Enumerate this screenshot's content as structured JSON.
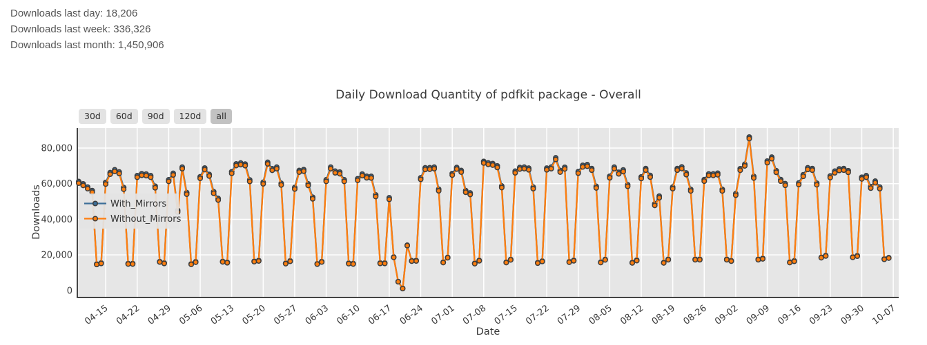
{
  "stats": {
    "lines": [
      "Downloads last day: 18,206",
      "Downloads last week: 336,326",
      "Downloads last month: 1,450,906"
    ]
  },
  "controls": {
    "buttons": [
      "30d",
      "60d",
      "90d",
      "120d",
      "all"
    ],
    "active": "all"
  },
  "chart_data": {
    "type": "line",
    "title": "Daily Download Quantity of pdfkit package - Overall",
    "xlabel": "Date",
    "ylabel": "Downloads",
    "grid": true,
    "legend_position": "inside-top-left",
    "start_date": "04-09",
    "x_tick_labels": [
      "04-15",
      "04-22",
      "04-29",
      "05-06",
      "05-13",
      "05-20",
      "05-27",
      "06-03",
      "06-10",
      "06-17",
      "06-24",
      "07-01",
      "07-08",
      "07-15",
      "07-22",
      "07-29",
      "08-05",
      "08-12",
      "08-19",
      "08-26",
      "09-02",
      "09-09",
      "09-16",
      "09-23",
      "09-30",
      "10-07"
    ],
    "first_tick_day_index": 6,
    "days_per_tick": 7,
    "y_tick_values": [
      0,
      20000,
      40000,
      60000,
      80000
    ],
    "y_tick_labels": [
      "0",
      "20,000",
      "40,000",
      "60,000",
      "80,000"
    ],
    "ylim": [
      0,
      91000
    ],
    "series": [
      {
        "name": "With_Mirrors",
        "color": "#3C6E98",
        "values": [
          61200,
          59900,
          58100,
          56100,
          14850,
          15450,
          60700,
          66200,
          67800,
          66600,
          57800,
          15150,
          15150,
          64500,
          65600,
          65400,
          64500,
          58600,
          16250,
          15450,
          62200,
          65800,
          45000,
          69300,
          55000,
          14950,
          16150,
          63900,
          68800,
          65200,
          55500,
          51700,
          16350,
          15850,
          66700,
          71100,
          71600,
          71000,
          62100,
          16450,
          16850,
          60800,
          72000,
          68400,
          69300,
          60200,
          15350,
          16650,
          57900,
          67400,
          67900,
          59900,
          52400,
          15050,
          16250,
          62200,
          69300,
          67000,
          66500,
          62200,
          15350,
          15150,
          62800,
          65400,
          64200,
          64100,
          53700,
          15450,
          15450,
          52100,
          18850,
          5020,
          1220,
          25450,
          16750,
          16850,
          63300,
          68900,
          69000,
          69300,
          56900,
          15950,
          18650,
          65700,
          69100,
          67400,
          56100,
          54800,
          15350,
          16950,
          72500,
          71700,
          71300,
          70000,
          58700,
          15950,
          17450,
          67000,
          69100,
          69300,
          68700,
          58100,
          15650,
          16550,
          68700,
          69300,
          74500,
          67400,
          69200,
          16150,
          16950,
          66800,
          70300,
          70700,
          68500,
          58500,
          15950,
          17450,
          64200,
          69300,
          66400,
          67700,
          59400,
          15750,
          17050,
          63800,
          68500,
          64600,
          48700,
          53000,
          15750,
          17550,
          58100,
          68500,
          69400,
          66000,
          56800,
          17550,
          17550,
          62300,
          65500,
          65500,
          65900,
          56800,
          17550,
          16750,
          54400,
          68400,
          70900,
          86200,
          64100,
          17550,
          18050,
          72700,
          74900,
          67300,
          62300,
          60000,
          15950,
          16650,
          60400,
          65000,
          68900,
          68500,
          60300,
          18650,
          19650,
          64300,
          67000,
          68300,
          68500,
          67300,
          18850,
          19550,
          63600,
          64500,
          58400,
          61400,
          58100,
          17750,
          18456
        ]
      },
      {
        "name": "Without_Mirrors",
        "color": "#FF7E0E",
        "values": [
          60300,
          59000,
          57200,
          55200,
          14600,
          15200,
          59800,
          65300,
          66900,
          65700,
          56900,
          14900,
          14900,
          63600,
          64700,
          64500,
          63600,
          57700,
          16000,
          15200,
          61300,
          64900,
          44100,
          68400,
          54100,
          14700,
          15900,
          63000,
          67900,
          64300,
          54600,
          50800,
          16100,
          15600,
          65800,
          70200,
          70700,
          70100,
          61200,
          16200,
          16600,
          59900,
          71100,
          67500,
          68400,
          59300,
          15100,
          16400,
          57000,
          66500,
          67000,
          59000,
          51500,
          14800,
          16000,
          61300,
          68400,
          66100,
          65600,
          61300,
          15100,
          14900,
          61900,
          64500,
          63300,
          63200,
          52800,
          15200,
          15200,
          51200,
          18600,
          4900,
          1100,
          25200,
          16500,
          16600,
          62400,
          68000,
          68100,
          68400,
          56000,
          15700,
          18400,
          64800,
          68200,
          66500,
          55200,
          53900,
          15100,
          16700,
          71600,
          70800,
          70400,
          69100,
          57800,
          15700,
          17200,
          66100,
          68200,
          68400,
          67800,
          57200,
          15400,
          16300,
          67800,
          68400,
          73600,
          66500,
          68300,
          15900,
          16700,
          65900,
          69400,
          69800,
          67600,
          57600,
          15700,
          17200,
          63300,
          68400,
          65500,
          66800,
          58500,
          15500,
          16800,
          62900,
          67600,
          63700,
          47800,
          52100,
          15500,
          17300,
          57200,
          67600,
          68500,
          65100,
          55900,
          17300,
          17300,
          61400,
          64600,
          64600,
          65000,
          55900,
          17300,
          16500,
          53500,
          67500,
          70000,
          85300,
          63200,
          17300,
          17800,
          71800,
          74000,
          66400,
          61400,
          59100,
          15700,
          16400,
          59500,
          64100,
          68000,
          67600,
          59400,
          18400,
          19400,
          63400,
          66100,
          67400,
          67600,
          66400,
          18600,
          19300,
          62700,
          63600,
          57500,
          60500,
          57200,
          17500,
          18206
        ]
      }
    ]
  },
  "colors": {
    "plot_bg": "#E6E6E6",
    "grid": "#FFFFFF",
    "axis": "#444444",
    "marker_edge": "#3D3D3D",
    "tick_text": "#3A3A3A",
    "legend_bg": "#E3E3E3",
    "button_bg": "#E3E3E3",
    "button_active_bg": "#C2C2C2"
  }
}
